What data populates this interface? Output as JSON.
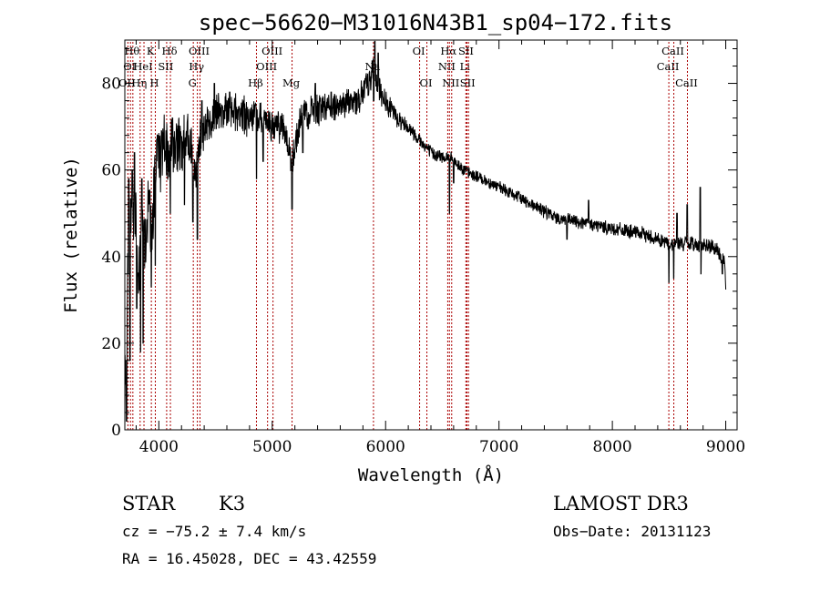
{
  "chart_data": {
    "type": "line",
    "title": "spec−56620−M31016N43B1_sp04−172.fits",
    "xlabel": "Wavelength (Å)",
    "ylabel": "Flux (relative)",
    "xlim": [
      3700,
      9100
    ],
    "ylim": [
      0,
      90
    ],
    "xticks": [
      4000,
      5000,
      6000,
      7000,
      8000,
      9000
    ],
    "yticks": [
      0,
      20,
      40,
      60,
      80
    ],
    "grid": false,
    "line_color": "#000000",
    "marker_color": "#aa0000",
    "spectrum_nodes": [
      [
        3700,
        8
      ],
      [
        3730,
        40
      ],
      [
        3760,
        50
      ],
      [
        3790,
        52
      ],
      [
        3820,
        35
      ],
      [
        3850,
        45
      ],
      [
        3880,
        45
      ],
      [
        3910,
        50
      ],
      [
        3940,
        48
      ],
      [
        3970,
        60
      ],
      [
        4000,
        62
      ],
      [
        4030,
        64
      ],
      [
        4060,
        66
      ],
      [
        4100,
        64
      ],
      [
        4150,
        66
      ],
      [
        4200,
        65
      ],
      [
        4250,
        68
      ],
      [
        4300,
        63
      ],
      [
        4330,
        58
      ],
      [
        4360,
        68
      ],
      [
        4400,
        70
      ],
      [
        4450,
        71
      ],
      [
        4500,
        73
      ],
      [
        4600,
        74
      ],
      [
        4700,
        73
      ],
      [
        4800,
        72
      ],
      [
        4860,
        72
      ],
      [
        4900,
        72
      ],
      [
        5000,
        70
      ],
      [
        5100,
        70
      ],
      [
        5180,
        62
      ],
      [
        5250,
        72
      ],
      [
        5350,
        74
      ],
      [
        5450,
        74
      ],
      [
        5600,
        75
      ],
      [
        5750,
        76
      ],
      [
        5850,
        80
      ],
      [
        5900,
        84
      ],
      [
        5930,
        79
      ],
      [
        6000,
        76
      ],
      [
        6100,
        72
      ],
      [
        6200,
        70
      ],
      [
        6300,
        67
      ],
      [
        6400,
        64
      ],
      [
        6500,
        63
      ],
      [
        6560,
        63
      ],
      [
        6650,
        61
      ],
      [
        6750,
        59
      ],
      [
        6850,
        58
      ],
      [
        7000,
        56
      ],
      [
        7150,
        54
      ],
      [
        7300,
        52
      ],
      [
        7500,
        49
      ],
      [
        7700,
        48
      ],
      [
        7900,
        47
      ],
      [
        8100,
        46
      ],
      [
        8300,
        45
      ],
      [
        8500,
        43
      ],
      [
        8700,
        43
      ],
      [
        8900,
        42
      ],
      [
        8990,
        39
      ],
      [
        9000,
        32
      ]
    ],
    "spectrum_dips": [
      [
        3715,
        2
      ],
      [
        3745,
        16
      ],
      [
        3805,
        28
      ],
      [
        3838,
        18
      ],
      [
        3862,
        20
      ],
      [
        3933,
        33
      ],
      [
        3968,
        38
      ],
      [
        4101,
        50
      ],
      [
        4226,
        52
      ],
      [
        4300,
        48
      ],
      [
        4340,
        44
      ],
      [
        4861,
        58
      ],
      [
        4920,
        62
      ],
      [
        5175,
        51
      ],
      [
        5270,
        64
      ],
      [
        5895,
        76
      ],
      [
        6563,
        50
      ],
      [
        6600,
        57
      ],
      [
        7600,
        44
      ],
      [
        8498,
        34
      ],
      [
        8542,
        35
      ],
      [
        8662,
        28
      ],
      [
        8780,
        36
      ],
      [
        8970,
        36
      ]
    ],
    "spectrum_spikes": [
      [
        3735,
        58
      ],
      [
        3765,
        60
      ],
      [
        3785,
        64
      ],
      [
        3850,
        58
      ],
      [
        3990,
        68
      ],
      [
        4120,
        72
      ],
      [
        4380,
        76
      ],
      [
        4490,
        80
      ],
      [
        4625,
        78
      ],
      [
        5380,
        80
      ],
      [
        5520,
        78
      ],
      [
        5905,
        90
      ],
      [
        5935,
        87
      ],
      [
        7790,
        53
      ],
      [
        8570,
        50
      ],
      [
        8660,
        52
      ],
      [
        8775,
        56
      ]
    ],
    "noise_level": [
      [
        3700,
        9
      ],
      [
        4400,
        4
      ],
      [
        5800,
        3
      ],
      [
        6200,
        1.5
      ],
      [
        6800,
        1.2
      ],
      [
        9000,
        1.6
      ]
    ],
    "emission_lines": [
      {
        "wavelength": 3727,
        "label": "OII",
        "row": 3
      },
      {
        "wavelength": 3750,
        "label": "OI",
        "row": 2
      },
      {
        "wavelength": 3771,
        "label": "Hθ",
        "row": 1
      },
      {
        "wavelength": 3835,
        "label": "Hη",
        "row": 3
      },
      {
        "wavelength": 3869,
        "label": "HeI",
        "row": 2
      },
      {
        "wavelength": 3934,
        "label": "K",
        "row": 1
      },
      {
        "wavelength": 3969,
        "label": "H",
        "row": 3
      },
      {
        "wavelength": 4069,
        "label": "SII",
        "row": 2
      },
      {
        "wavelength": 4102,
        "label": "Hδ",
        "row": 1
      },
      {
        "wavelength": 4304,
        "label": "G",
        "row": 3
      },
      {
        "wavelength": 4340,
        "label": "Hγ",
        "row": 2
      },
      {
        "wavelength": 4363,
        "label": "OIII",
        "row": 1
      },
      {
        "wavelength": 4861,
        "label": "Hβ",
        "row": 3
      },
      {
        "wavelength": 4959,
        "label": "OIII",
        "row": 2
      },
      {
        "wavelength": 5007,
        "label": "OIII",
        "row": 1
      },
      {
        "wavelength": 5175,
        "label": "Mg",
        "row": 3
      },
      {
        "wavelength": 5893,
        "label": "Na",
        "row": 2
      },
      {
        "wavelength": 6300,
        "label": "OI",
        "row": 1
      },
      {
        "wavelength": 6364,
        "label": "OI",
        "row": 3
      },
      {
        "wavelength": 6548,
        "label": "NII",
        "row": 2
      },
      {
        "wavelength": 6563,
        "label": "Hα",
        "row": 1
      },
      {
        "wavelength": 6583,
        "label": "NII",
        "row": 3
      },
      {
        "wavelength": 6708,
        "label": "Li",
        "row": 2
      },
      {
        "wavelength": 6717,
        "label": "SII",
        "row": 1
      },
      {
        "wavelength": 6731,
        "label": "SII",
        "row": 3
      },
      {
        "wavelength": 8498,
        "label": "CaII",
        "row": 2
      },
      {
        "wavelength": 8542,
        "label": "CaII",
        "row": 1
      },
      {
        "wavelength": 8662,
        "label": "CaII",
        "row": 3
      }
    ]
  },
  "info": {
    "object_class": "STAR",
    "subclass": "K3",
    "survey": "LAMOST DR3",
    "cz": "cz = −75.2 ± 7.4 km/s",
    "obs_date": "Obs−Date: 20131123",
    "coords": "RA =  16.45028, DEC =  43.42559"
  }
}
